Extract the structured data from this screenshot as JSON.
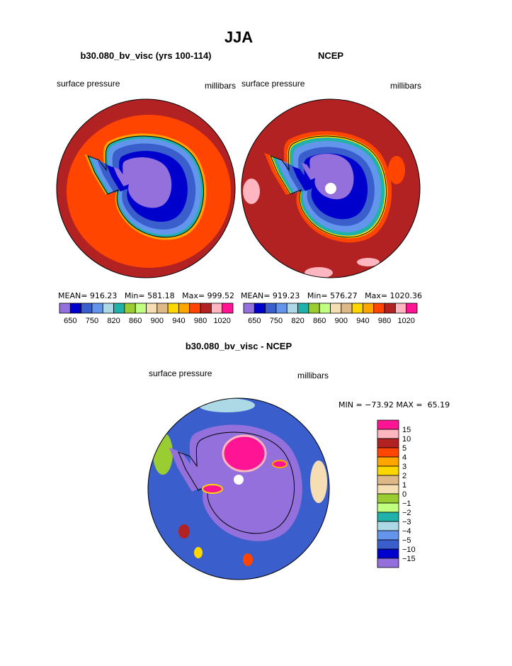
{
  "title": "JJA",
  "panels": [
    {
      "title": "b30.080_bv_visc (yrs 100-114)",
      "left_label": "surface pressure",
      "right_label": "millibars",
      "stats": "MEAN= 916.23   Min= 581.18   Max= 999.52"
    },
    {
      "title": "NCEP",
      "left_label": "surface pressure",
      "right_label": "millibars",
      "stats": "MEAN= 919.23   Min= 576.27   Max= 1020.36"
    }
  ],
  "colorbar": {
    "colors": [
      "#9370db",
      "#0000cd",
      "#3a5fcd",
      "#6495ed",
      "#add8e6",
      "#20b2aa",
      "#9acd32",
      "#c0ff80",
      "#f5deb3",
      "#deb887",
      "#ffd700",
      "#ffa500",
      "#ff4500",
      "#b22222",
      "#ffb6c1",
      "#ff1493"
    ],
    "labels": [
      "650",
      "750",
      "820",
      "860",
      "900",
      "940",
      "980",
      "1020"
    ]
  },
  "difference": {
    "title": "b30.080_bv_visc - NCEP",
    "left_label": "surface pressure",
    "right_label": "millibars",
    "stats": "MIN = −73.92 MAX =  65.19",
    "colorbar": {
      "colors": [
        "#ff1493",
        "#ffb6c1",
        "#b22222",
        "#ff4500",
        "#ffa500",
        "#ffd700",
        "#deb887",
        "#f5deb3",
        "#9acd32",
        "#c0ff80",
        "#20b2aa",
        "#add8e6",
        "#6495ed",
        "#3a5fcd",
        "#0000cd",
        "#9370db"
      ],
      "labels": [
        "15",
        "10",
        "5",
        "4",
        "3",
        "2",
        "1",
        "0",
        "−1",
        "−2",
        "−3",
        "−4",
        "−5",
        "−10",
        "−15"
      ]
    }
  }
}
